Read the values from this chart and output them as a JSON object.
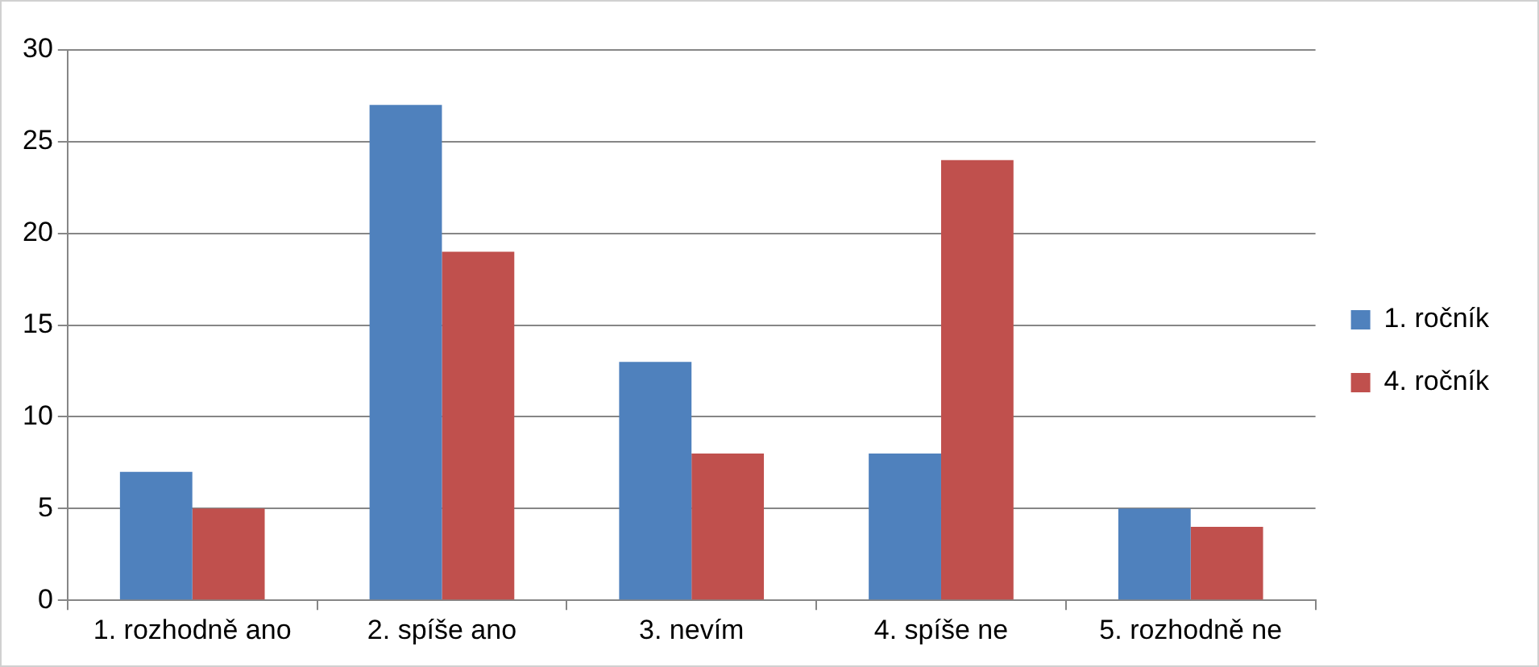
{
  "chart_data": {
    "type": "bar",
    "categories": [
      "1. rozhodně ano",
      "2. spíše ano",
      "3. nevím",
      "4. spíše ne",
      "5. rozhodně ne"
    ],
    "series": [
      {
        "name": "1. ročník",
        "color": "#4f81bd",
        "values": [
          7,
          27,
          13,
          8,
          5
        ]
      },
      {
        "name": "4. ročník",
        "color": "#c0504d",
        "values": [
          5,
          19,
          8,
          24,
          4
        ]
      }
    ],
    "ylim": [
      0,
      30
    ],
    "yticks": [
      0,
      5,
      10,
      15,
      20,
      25,
      30
    ],
    "grid": "y",
    "legend": "right"
  }
}
